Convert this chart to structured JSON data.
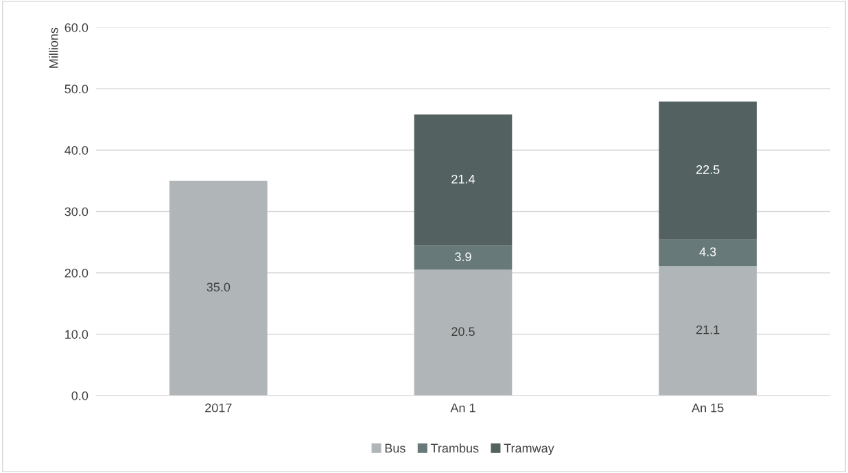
{
  "chart_data": {
    "type": "bar",
    "stacked": true,
    "ylabel": "Millions",
    "categories": [
      "2017",
      "An 1",
      "An 15"
    ],
    "series": [
      {
        "name": "Bus",
        "color": "#b0b5b7",
        "values": [
          35.0,
          20.5,
          21.1
        ],
        "value_labels": [
          "35.0",
          "20.5",
          "21.1"
        ]
      },
      {
        "name": "Trambus",
        "color": "#687979",
        "values": [
          null,
          3.9,
          4.3
        ],
        "value_labels": [
          null,
          "3.9",
          "4.3"
        ]
      },
      {
        "name": "Tramway",
        "color": "#536261",
        "values": [
          null,
          21.4,
          22.5
        ],
        "value_labels": [
          null,
          "21.4",
          "22.5"
        ]
      }
    ],
    "ylim": [
      0,
      60
    ],
    "yticks": [
      {
        "value": 0,
        "label": "0.0"
      },
      {
        "value": 10,
        "label": "10.0"
      },
      {
        "value": 20,
        "label": "20.0"
      },
      {
        "value": 30,
        "label": "30.0"
      },
      {
        "value": 40,
        "label": "40.0"
      },
      {
        "value": 50,
        "label": "50.0"
      },
      {
        "value": 60,
        "label": "60.0"
      }
    ],
    "grid": "y",
    "legend": "bottom"
  }
}
